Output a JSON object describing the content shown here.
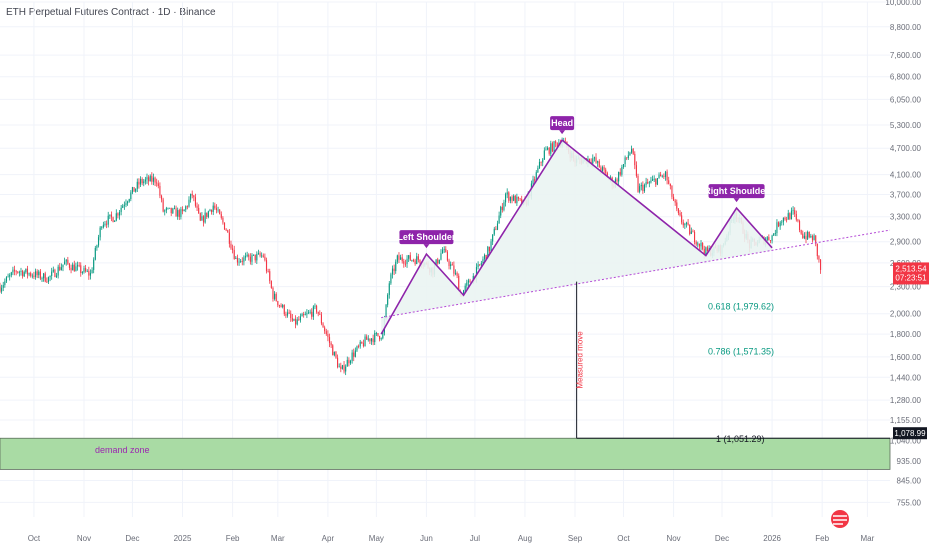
{
  "title": "ETH Perpetual Futures Contract · 1D · Binance",
  "colors": {
    "up": "#089981",
    "down": "#f23645",
    "pattern": "#8e24aa",
    "pattern_fill": "#eaf4f2",
    "neckline": "#b44ad6",
    "zone_fill": "#a9dba4",
    "zone_border": "#5a6b5a",
    "grid": "#f0f3fa"
  },
  "chart_data": {
    "type": "candlestick",
    "symbol": "ETH Perpetual Futures Contract",
    "timeframe": "1D",
    "exchange": "Binance",
    "y_scale": "log",
    "ylim": [
      700,
      10000
    ],
    "y_ticks": [
      "10,000.00",
      "8,800.00",
      "7,600.00",
      "6,800.00",
      "6,050.00",
      "5,300.00",
      "4,700.00",
      "4,100.00",
      "3,700.00",
      "3,300.00",
      "2,900.00",
      "2,600.00",
      "2,300.00",
      "2,000.00",
      "1,800.00",
      "1,600.00",
      "1,440.00",
      "1,280.00",
      "1,155.00",
      "1,040.00",
      "935.00",
      "845.00",
      "755.00"
    ],
    "x_ticks": [
      "Oct",
      "Nov",
      "Dec",
      "2025",
      "Feb",
      "Mar",
      "Apr",
      "May",
      "Jun",
      "Jul",
      "Aug",
      "Sep",
      "Oct",
      "Nov",
      "Dec",
      "2026",
      "Feb",
      "Mar"
    ],
    "x_range": [
      "2024-09-10",
      "2026-03-15"
    ],
    "price_path": [
      [
        "2024-09-10",
        2300
      ],
      [
        "2024-09-20",
        2500
      ],
      [
        "2024-10-01",
        2450
      ],
      [
        "2024-10-10",
        2400
      ],
      [
        "2024-10-20",
        2600
      ],
      [
        "2024-10-30",
        2500
      ],
      [
        "2024-11-05",
        2450
      ],
      [
        "2024-11-12",
        3200
      ],
      [
        "2024-11-20",
        3300
      ],
      [
        "2024-11-27",
        3600
      ],
      [
        "2024-12-06",
        3950
      ],
      [
        "2024-12-16",
        4000
      ],
      [
        "2024-12-20",
        3400
      ],
      [
        "2025-01-01",
        3350
      ],
      [
        "2025-01-07",
        3700
      ],
      [
        "2025-01-12",
        3200
      ],
      [
        "2025-01-20",
        3500
      ],
      [
        "2025-01-28",
        3100
      ],
      [
        "2025-02-03",
        2650
      ],
      [
        "2025-02-10",
        2650
      ],
      [
        "2025-02-20",
        2700
      ],
      [
        "2025-02-26",
        2200
      ],
      [
        "2025-03-11",
        1900
      ],
      [
        "2025-03-25",
        2050
      ],
      [
        "2025-03-31",
        1800
      ],
      [
        "2025-04-09",
        1480
      ],
      [
        "2025-04-15",
        1600
      ],
      [
        "2025-04-25",
        1750
      ],
      [
        "2025-05-05",
        1800
      ],
      [
        "2025-05-09",
        2350
      ],
      [
        "2025-05-14",
        2650
      ],
      [
        "2025-05-28",
        2650
      ],
      [
        "2025-06-05",
        2500
      ],
      [
        "2025-06-11",
        2780
      ],
      [
        "2025-06-20",
        2400
      ],
      [
        "2025-06-22",
        2200
      ],
      [
        "2025-07-01",
        2450
      ],
      [
        "2025-07-10",
        2800
      ],
      [
        "2025-07-20",
        3700
      ],
      [
        "2025-08-01",
        3500
      ],
      [
        "2025-08-13",
        4600
      ],
      [
        "2025-08-24",
        4900
      ],
      [
        "2025-09-01",
        4400
      ],
      [
        "2025-09-12",
        4450
      ],
      [
        "2025-09-25",
        3900
      ],
      [
        "2025-10-06",
        4700
      ],
      [
        "2025-10-10",
        3800
      ],
      [
        "2025-10-27",
        4100
      ],
      [
        "2025-11-04",
        3300
      ],
      [
        "2025-11-21",
        2750
      ],
      [
        "2025-12-01",
        2800
      ],
      [
        "2025-12-09",
        3400
      ],
      [
        "2025-12-18",
        2850
      ],
      [
        "2026-01-01",
        2980
      ],
      [
        "2026-01-06",
        3250
      ],
      [
        "2026-01-14",
        3350
      ],
      [
        "2026-01-20",
        3000
      ],
      [
        "2026-01-27",
        2950
      ],
      [
        "2026-01-31",
        2513.54
      ]
    ],
    "last_price": "2,513.54",
    "countdown": "07:23:51",
    "pattern": {
      "name": "head and shoulders",
      "labels": {
        "left_shoulder": "Left Shoulder",
        "head": "Head",
        "right_shoulder": "Right Shoulder"
      },
      "points": [
        [
          "2025-05-04",
          1800
        ],
        [
          "2025-06-01",
          2720
        ],
        [
          "2025-06-24",
          2200
        ],
        [
          "2025-08-24",
          4900
        ],
        [
          "2025-11-21",
          2700
        ],
        [
          "2025-12-10",
          3450
        ],
        [
          "2026-01-01",
          2810
        ]
      ],
      "neckline": [
        [
          "2025-05-04",
          1960
        ],
        [
          "2026-03-15",
          3080
        ]
      ]
    },
    "fib_levels": [
      {
        "label": "0.618 (1,979.62)",
        "value": 1979.62
      },
      {
        "label": "0.786 (1,571.35)",
        "value": 1571.35
      },
      {
        "label": "1 (1,051.29)",
        "value": 1051.29
      }
    ],
    "projection": {
      "label": "Measured move",
      "from": [
        "2025-09-02",
        2360
      ],
      "to": [
        "2025-09-02",
        1051.29
      ]
    },
    "demand_zone": {
      "label": "demand zone",
      "top": 1051.29,
      "bottom": 895
    },
    "price_marker": {
      "label": "1,078.99",
      "value": 1078.99
    }
  }
}
